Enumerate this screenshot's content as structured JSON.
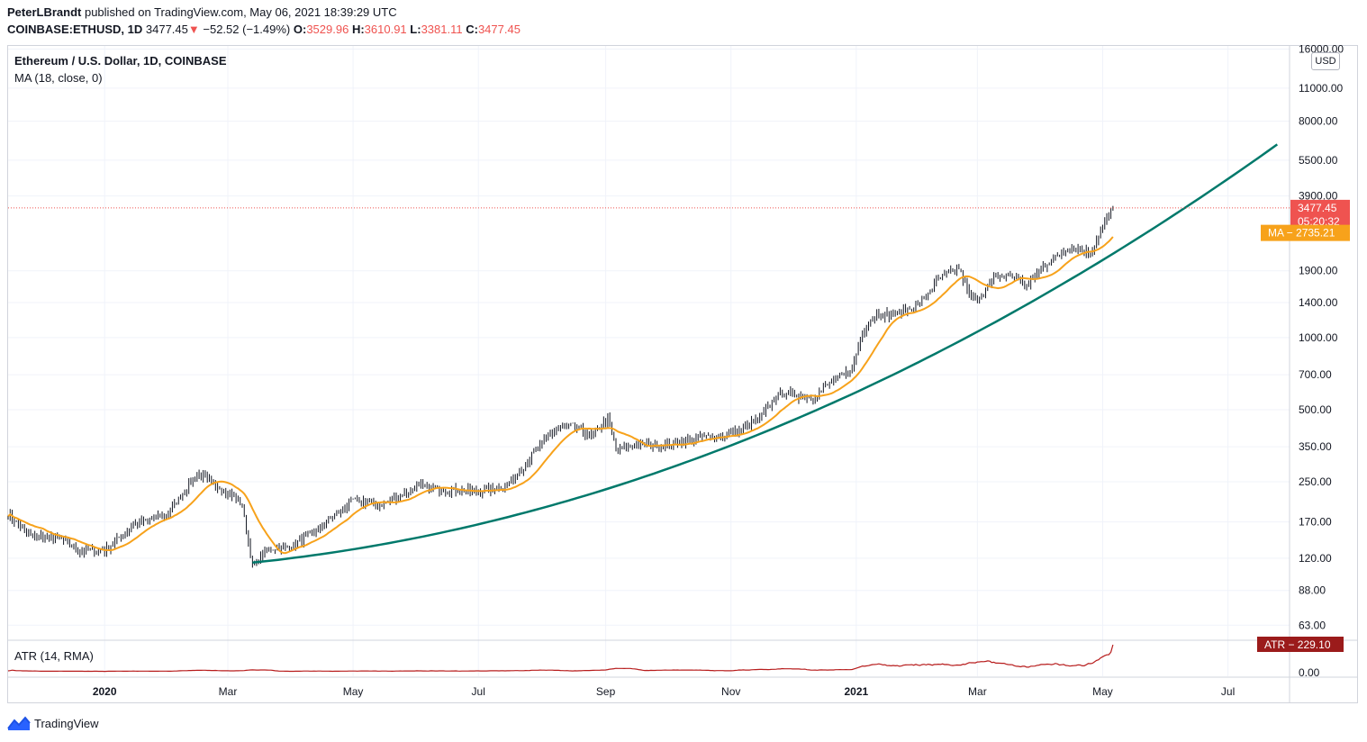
{
  "header": {
    "author": "PeterLBrandt",
    "published": " published on TradingView.com, May 06, 2021 18:39:29 UTC",
    "symbol": "COINBASE:ETHUSD, 1D",
    "last": "3477.45",
    "arrow": "▼",
    "change": "−52.52 (−1.49%)",
    "open_label": "O:",
    "open": "3529.96",
    "high_label": "H:",
    "high": "3610.91",
    "low_label": "L:",
    "low": "3381.11",
    "close_label": "C:",
    "close": "3477.45"
  },
  "legend": {
    "title": "Ethereum / U.S. Dollar, 1D, COINBASE",
    "ma": "MA (18, close, 0)",
    "atr": "ATR (14, RMA)"
  },
  "price_scale": {
    "currency": "USD",
    "ticks": [
      "16000.00",
      "11000.00",
      "8000.00",
      "5500.00",
      "3900.00",
      "1900.00",
      "1400.00",
      "1000.00",
      "700.00",
      "500.00",
      "350.00",
      "250.00",
      "170.00",
      "120.00",
      "88.00",
      "63.00"
    ],
    "last_price_tag": "3477.45",
    "countdown_tag": "05:20:32",
    "ma_tag": "MA − 2735.21",
    "atr_tag": "ATR − 229.10",
    "atr_zero": "0.00"
  },
  "time_scale": {
    "labels": [
      "2020",
      "Mar",
      "May",
      "Jul",
      "Sep",
      "Nov",
      "2021",
      "Mar",
      "May",
      "Jul"
    ]
  },
  "colors": {
    "candles": "#131722",
    "ma": "#f7a21b",
    "trendline": "#00796b",
    "atr": "#b71c1c",
    "last_price": "#ef5350",
    "ma_tag_bg": "#f7a21b",
    "atr_tag_bg": "#9b1b1b"
  },
  "chart_data": {
    "type": "line",
    "scale": "log",
    "ylim": [
      55,
      16500
    ],
    "x_range": [
      "2019-11-15",
      "2021-07-31"
    ],
    "anchors": [
      [
        "2019-11-15",
        185
      ],
      [
        "2019-11-25",
        150
      ],
      [
        "2019-12-10",
        145
      ],
      [
        "2019-12-20",
        128
      ],
      [
        "2020-01-01",
        130
      ],
      [
        "2020-01-15",
        165
      ],
      [
        "2020-02-01",
        185
      ],
      [
        "2020-02-15",
        270
      ],
      [
        "2020-03-01",
        225
      ],
      [
        "2020-03-08",
        200
      ],
      [
        "2020-03-13",
        110
      ],
      [
        "2020-03-20",
        130
      ],
      [
        "2020-04-01",
        135
      ],
      [
        "2020-04-15",
        160
      ],
      [
        "2020-05-01",
        210
      ],
      [
        "2020-05-15",
        200
      ],
      [
        "2020-06-01",
        240
      ],
      [
        "2020-06-15",
        232
      ],
      [
        "2020-07-01",
        228
      ],
      [
        "2020-07-15",
        240
      ],
      [
        "2020-07-27",
        320
      ],
      [
        "2020-08-05",
        400
      ],
      [
        "2020-08-15",
        430
      ],
      [
        "2020-08-25",
        390
      ],
      [
        "2020-09-02",
        460
      ],
      [
        "2020-09-06",
        340
      ],
      [
        "2020-09-20",
        360
      ],
      [
        "2020-10-01",
        355
      ],
      [
        "2020-10-15",
        380
      ],
      [
        "2020-11-01",
        395
      ],
      [
        "2020-11-15",
        460
      ],
      [
        "2020-11-25",
        590
      ],
      [
        "2020-12-10",
        560
      ],
      [
        "2020-12-20",
        650
      ],
      [
        "2020-12-30",
        740
      ],
      [
        "2021-01-04",
        1050
      ],
      [
        "2021-01-10",
        1250
      ],
      [
        "2021-01-20",
        1250
      ],
      [
        "2021-02-01",
        1380
      ],
      [
        "2021-02-10",
        1750
      ],
      [
        "2021-02-20",
        1950
      ],
      [
        "2021-02-25",
        1500
      ],
      [
        "2021-03-01",
        1450
      ],
      [
        "2021-03-10",
        1800
      ],
      [
        "2021-03-20",
        1800
      ],
      [
        "2021-03-25",
        1620
      ],
      [
        "2021-04-01",
        1950
      ],
      [
        "2021-04-15",
        2400
      ],
      [
        "2021-04-22",
        2300
      ],
      [
        "2021-04-25",
        2250
      ],
      [
        "2021-05-01",
        2900
      ],
      [
        "2021-05-06",
        3477
      ]
    ],
    "ma_period": 18,
    "trendline": {
      "from": [
        "2020-03-13",
        115
      ],
      "to": [
        "2021-07-25",
        6400
      ]
    },
    "atr": {
      "start": 8,
      "end": 229.1,
      "max_shown": 229.1
    }
  }
}
